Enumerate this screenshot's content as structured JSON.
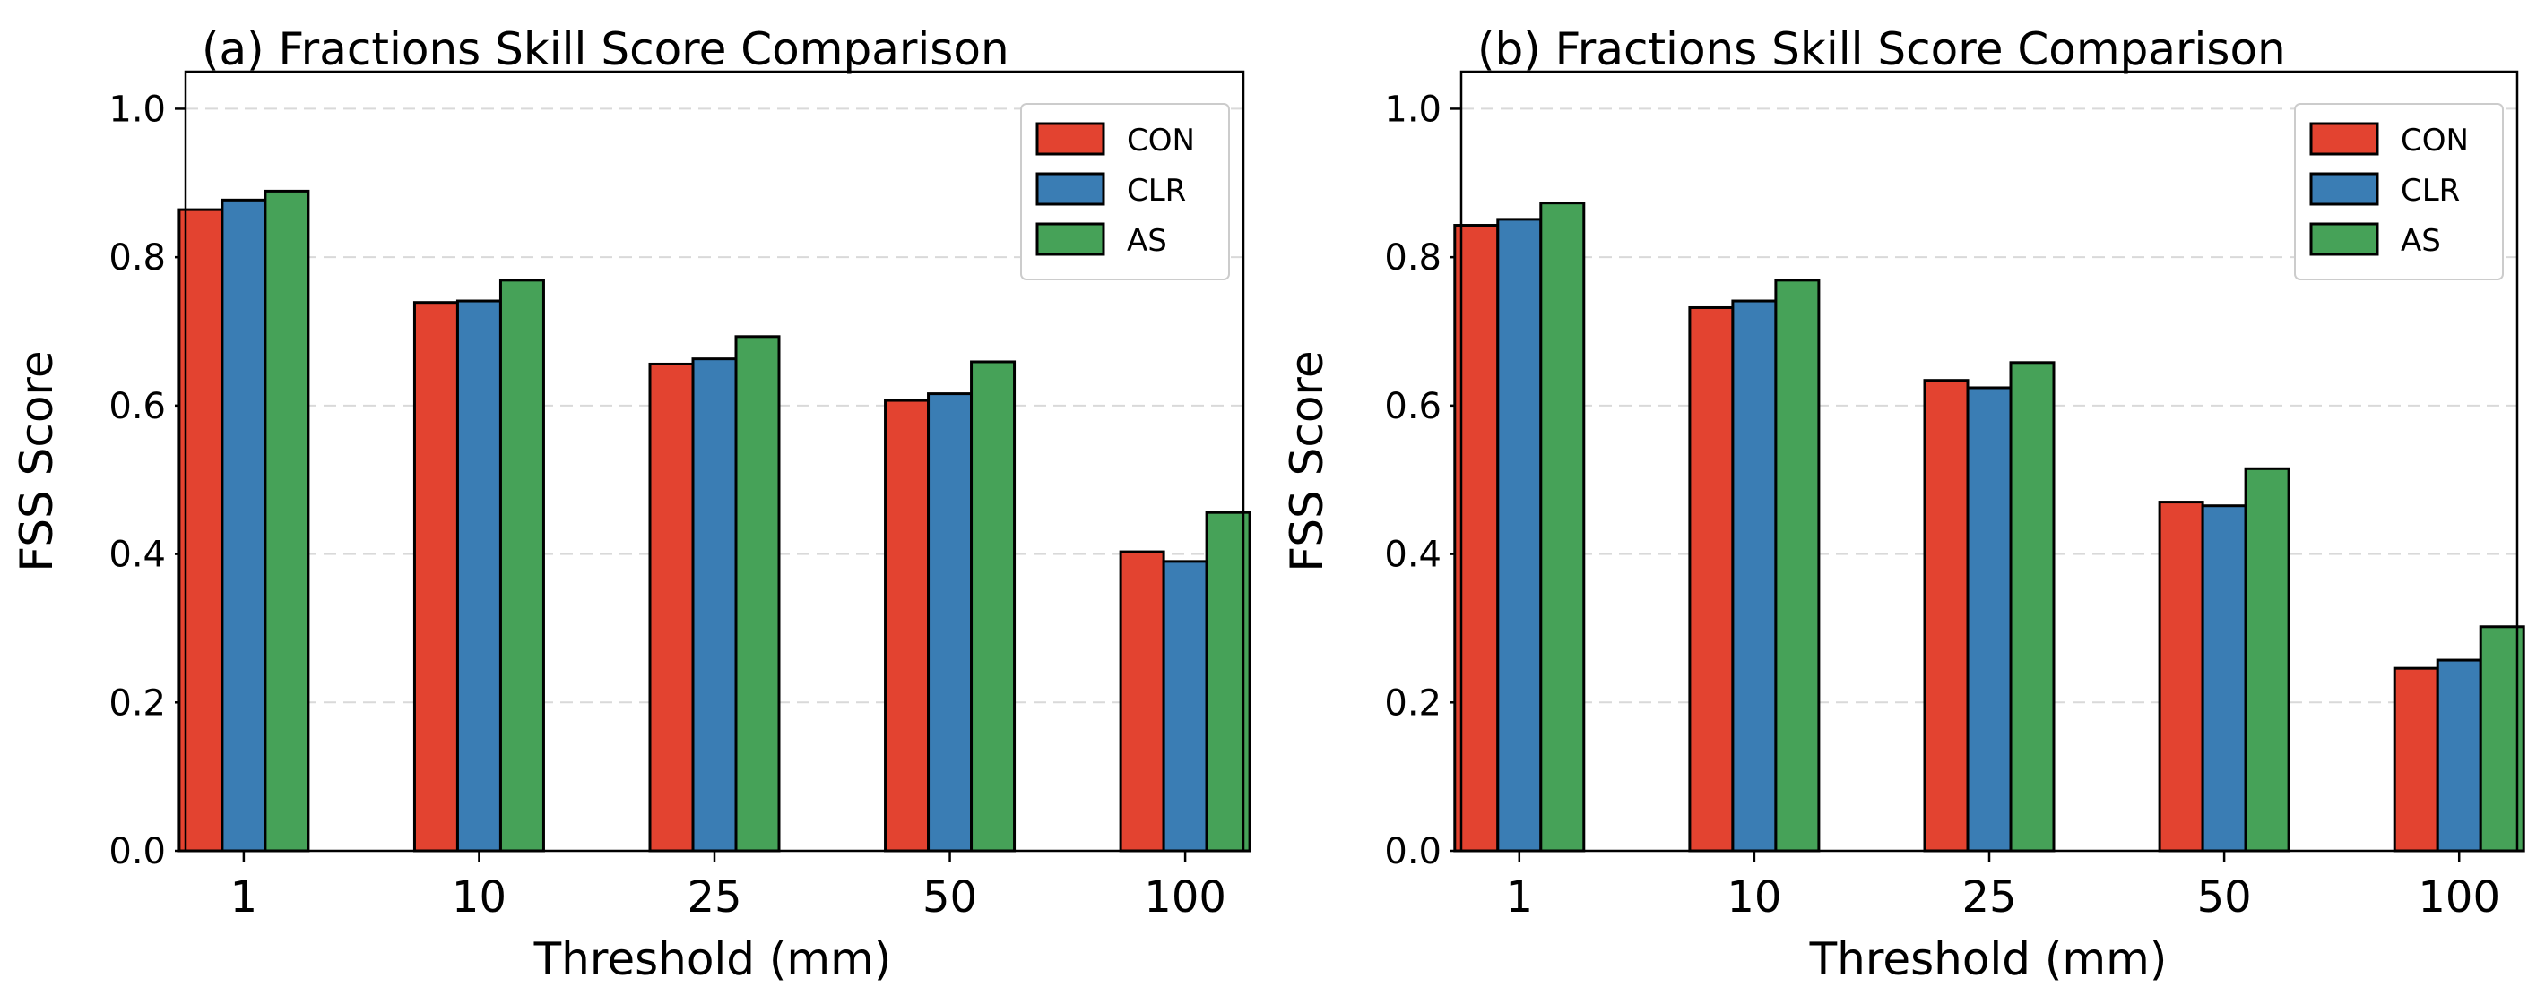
{
  "chart_data": [
    {
      "type": "bar",
      "title": "(a) Fractions Skill Score Comparison",
      "xlabel": "Threshold (mm)",
      "ylabel": "FSS Score",
      "ylim": [
        0,
        1.05
      ],
      "yticks": [
        "0.0",
        "0.2",
        "0.4",
        "0.6",
        "0.8",
        "1.0"
      ],
      "grid": "horizontal dashed",
      "legend": "top-right",
      "categories": [
        "1",
        "10",
        "25",
        "50",
        "100"
      ],
      "series": [
        {
          "name": "CON",
          "color": "#e34330",
          "values": [
            0.864,
            0.739,
            0.656,
            0.607,
            0.403
          ]
        },
        {
          "name": "CLR",
          "color": "#3a7db4",
          "values": [
            0.877,
            0.741,
            0.663,
            0.616,
            0.39
          ]
        },
        {
          "name": "AS",
          "color": "#46a258",
          "values": [
            0.889,
            0.769,
            0.693,
            0.659,
            0.456
          ]
        }
      ]
    },
    {
      "type": "bar",
      "title": "(b) Fractions Skill Score Comparison",
      "xlabel": "Threshold (mm)",
      "ylabel": "FSS Score",
      "ylim": [
        0,
        1.05
      ],
      "yticks": [
        "0.0",
        "0.2",
        "0.4",
        "0.6",
        "0.8",
        "1.0"
      ],
      "grid": "horizontal dashed",
      "legend": "top-right",
      "categories": [
        "1",
        "10",
        "25",
        "50",
        "100"
      ],
      "series": [
        {
          "name": "CON",
          "color": "#e34330",
          "values": [
            0.843,
            0.732,
            0.634,
            0.47,
            0.246
          ]
        },
        {
          "name": "CLR",
          "color": "#3a7db4",
          "values": [
            0.851,
            0.741,
            0.624,
            0.465,
            0.257
          ]
        },
        {
          "name": "AS",
          "color": "#46a258",
          "values": [
            0.873,
            0.769,
            0.658,
            0.515,
            0.302
          ]
        }
      ]
    }
  ]
}
